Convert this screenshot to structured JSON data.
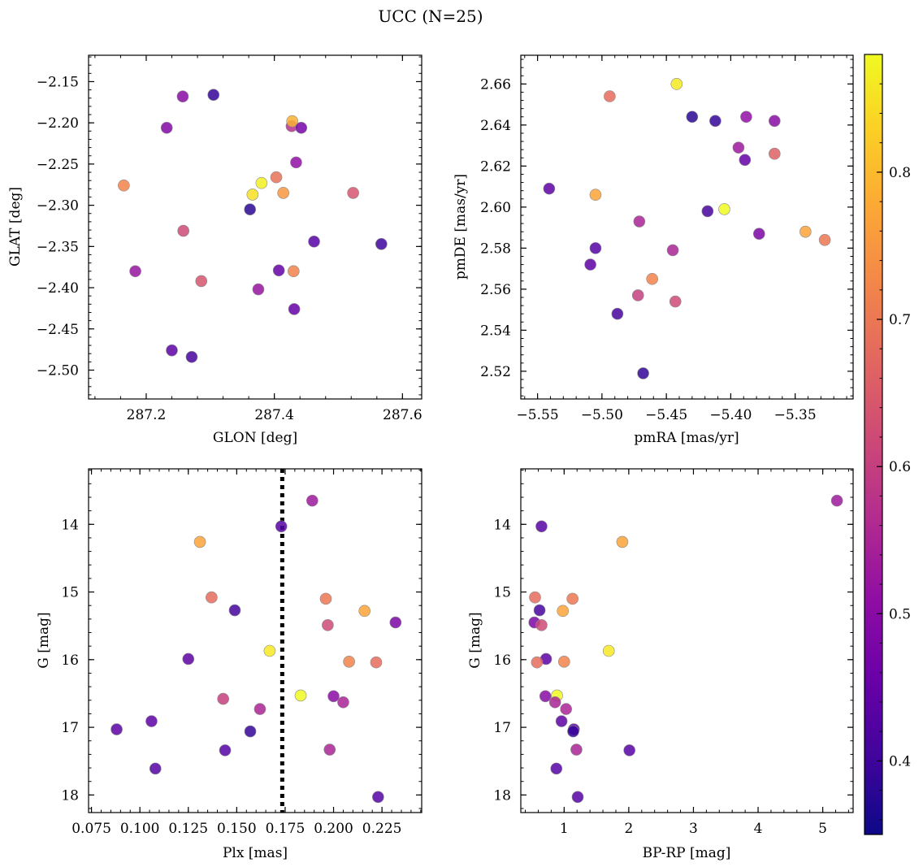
{
  "figure": {
    "title": "UCC (N=25)"
  },
  "colorbar": {
    "colormap": "plasma",
    "range": [
      0.35,
      0.88
    ],
    "ticks": [
      0.4,
      0.5,
      0.6,
      0.7,
      0.8
    ],
    "tick_labels": [
      "0.4",
      "0.5",
      "0.6",
      "0.7",
      "0.8"
    ]
  },
  "chart_data": [
    {
      "type": "scatter",
      "xlabel": "GLON [deg]",
      "ylabel": "GLAT [deg]",
      "xlim": [
        287.11,
        287.63
      ],
      "ylim": [
        -2.535,
        -2.118
      ],
      "xticks": [
        287.2,
        287.4,
        287.6
      ],
      "xtick_labels": [
        "287.2",
        "287.4",
        "287.6"
      ],
      "yticks": [
        -2.15,
        -2.2,
        -2.25,
        -2.3,
        -2.35,
        -2.4,
        -2.45,
        -2.5
      ],
      "ytick_labels": [
        "−2.15",
        "−2.20",
        "−2.25",
        "−2.30",
        "−2.35",
        "−2.40",
        "−2.45",
        "−2.50"
      ],
      "points": [
        {
          "x": 287.165,
          "y": -2.276,
          "c": 0.72
        },
        {
          "x": 287.183,
          "y": -2.38,
          "c": 0.52
        },
        {
          "x": 287.232,
          "y": -2.206,
          "c": 0.49
        },
        {
          "x": 287.24,
          "y": -2.476,
          "c": 0.44
        },
        {
          "x": 287.257,
          "y": -2.168,
          "c": 0.5
        },
        {
          "x": 287.258,
          "y": -2.331,
          "c": 0.62
        },
        {
          "x": 287.271,
          "y": -2.484,
          "c": 0.41
        },
        {
          "x": 287.286,
          "y": -2.392,
          "c": 0.64
        },
        {
          "x": 287.305,
          "y": -2.166,
          "c": 0.39
        },
        {
          "x": 287.362,
          "y": -2.305,
          "c": 0.38
        },
        {
          "x": 287.366,
          "y": -2.287,
          "c": 0.85
        },
        {
          "x": 287.375,
          "y": -2.402,
          "c": 0.52
        },
        {
          "x": 287.38,
          "y": -2.273,
          "c": 0.87
        },
        {
          "x": 287.403,
          "y": -2.266,
          "c": 0.69
        },
        {
          "x": 287.407,
          "y": -2.379,
          "c": 0.45
        },
        {
          "x": 287.414,
          "y": -2.285,
          "c": 0.75
        },
        {
          "x": 287.427,
          "y": -2.204,
          "c": 0.57
        },
        {
          "x": 287.428,
          "y": -2.198,
          "c": 0.79
        },
        {
          "x": 287.43,
          "y": -2.38,
          "c": 0.72
        },
        {
          "x": 287.431,
          "y": -2.426,
          "c": 0.45
        },
        {
          "x": 287.434,
          "y": -2.248,
          "c": 0.51
        },
        {
          "x": 287.442,
          "y": -2.206,
          "c": 0.47
        },
        {
          "x": 287.462,
          "y": -2.344,
          "c": 0.43
        },
        {
          "x": 287.523,
          "y": -2.285,
          "c": 0.64
        },
        {
          "x": 287.567,
          "y": -2.347,
          "c": 0.4
        }
      ]
    },
    {
      "type": "scatter",
      "xlabel": "pmRA [mas/yr]",
      "ylabel": "pmDE [mas/yr]",
      "xlim": [
        -5.563,
        -5.305
      ],
      "ylim": [
        2.5065,
        2.674
      ],
      "xticks": [
        -5.55,
        -5.5,
        -5.45,
        -5.4,
        -5.35
      ],
      "xtick_labels": [
        "−5.55",
        "−5.50",
        "−5.45",
        "−5.40",
        "−5.35"
      ],
      "yticks": [
        2.52,
        2.54,
        2.56,
        2.58,
        2.6,
        2.62,
        2.64,
        2.66
      ],
      "ytick_labels": [
        "2.52",
        "2.54",
        "2.56",
        "2.58",
        "2.60",
        "2.62",
        "2.64",
        "2.66"
      ],
      "points": [
        {
          "x": -5.541,
          "y": 2.609,
          "c": 0.44
        },
        {
          "x": -5.509,
          "y": 2.572,
          "c": 0.44
        },
        {
          "x": -5.505,
          "y": 2.58,
          "c": 0.43
        },
        {
          "x": -5.505,
          "y": 2.606,
          "c": 0.77
        },
        {
          "x": -5.494,
          "y": 2.654,
          "c": 0.68
        },
        {
          "x": -5.488,
          "y": 2.548,
          "c": 0.41
        },
        {
          "x": -5.472,
          "y": 2.557,
          "c": 0.6
        },
        {
          "x": -5.471,
          "y": 2.593,
          "c": 0.55
        },
        {
          "x": -5.468,
          "y": 2.519,
          "c": 0.39
        },
        {
          "x": -5.461,
          "y": 2.565,
          "c": 0.72
        },
        {
          "x": -5.445,
          "y": 2.579,
          "c": 0.55
        },
        {
          "x": -5.443,
          "y": 2.554,
          "c": 0.62
        },
        {
          "x": -5.442,
          "y": 2.66,
          "c": 0.86
        },
        {
          "x": -5.43,
          "y": 2.644,
          "c": 0.38
        },
        {
          "x": -5.418,
          "y": 2.598,
          "c": 0.41
        },
        {
          "x": -5.412,
          "y": 2.642,
          "c": 0.39
        },
        {
          "x": -5.405,
          "y": 2.599,
          "c": 0.88
        },
        {
          "x": -5.394,
          "y": 2.629,
          "c": 0.53
        },
        {
          "x": -5.389,
          "y": 2.623,
          "c": 0.45
        },
        {
          "x": -5.388,
          "y": 2.644,
          "c": 0.51
        },
        {
          "x": -5.378,
          "y": 2.587,
          "c": 0.48
        },
        {
          "x": -5.366,
          "y": 2.642,
          "c": 0.5
        },
        {
          "x": -5.366,
          "y": 2.626,
          "c": 0.66
        },
        {
          "x": -5.342,
          "y": 2.588,
          "c": 0.77
        },
        {
          "x": -5.327,
          "y": 2.584,
          "c": 0.7
        }
      ]
    },
    {
      "type": "scatter",
      "xlabel": "Plx [mas]",
      "ylabel": "G [mag]",
      "xlim": [
        0.0735,
        0.2455
      ],
      "ylim": [
        18.26,
        13.18
      ],
      "vline": 0.1735,
      "xticks": [
        0.075,
        0.1,
        0.125,
        0.15,
        0.175,
        0.2,
        0.225
      ],
      "xtick_labels": [
        "0.075",
        "0.100",
        "0.125",
        "0.150",
        "0.175",
        "0.200",
        "0.225"
      ],
      "yticks": [
        14,
        15,
        16,
        17,
        18
      ],
      "ytick_labels": [
        "14",
        "15",
        "16",
        "17",
        "18"
      ],
      "points": [
        {
          "x": 0.088,
          "y": 17.03,
          "c": 0.44
        },
        {
          "x": 0.106,
          "y": 16.91,
          "c": 0.44
        },
        {
          "x": 0.108,
          "y": 17.61,
          "c": 0.43
        },
        {
          "x": 0.125,
          "y": 15.99,
          "c": 0.44
        },
        {
          "x": 0.131,
          "y": 14.26,
          "c": 0.77
        },
        {
          "x": 0.137,
          "y": 15.08,
          "c": 0.68
        },
        {
          "x": 0.143,
          "y": 16.58,
          "c": 0.6
        },
        {
          "x": 0.144,
          "y": 17.34,
          "c": 0.43
        },
        {
          "x": 0.149,
          "y": 15.27,
          "c": 0.41
        },
        {
          "x": 0.157,
          "y": 17.06,
          "c": 0.39
        },
        {
          "x": 0.162,
          "y": 16.73,
          "c": 0.55
        },
        {
          "x": 0.167,
          "y": 15.87,
          "c": 0.86
        },
        {
          "x": 0.173,
          "y": 14.03,
          "c": 0.43
        },
        {
          "x": 0.183,
          "y": 16.53,
          "c": 0.88
        },
        {
          "x": 0.189,
          "y": 13.65,
          "c": 0.53
        },
        {
          "x": 0.196,
          "y": 15.1,
          "c": 0.7
        },
        {
          "x": 0.197,
          "y": 15.49,
          "c": 0.62
        },
        {
          "x": 0.198,
          "y": 17.33,
          "c": 0.55
        },
        {
          "x": 0.2,
          "y": 16.54,
          "c": 0.5
        },
        {
          "x": 0.205,
          "y": 16.63,
          "c": 0.55
        },
        {
          "x": 0.208,
          "y": 16.03,
          "c": 0.72
        },
        {
          "x": 0.216,
          "y": 15.28,
          "c": 0.77
        },
        {
          "x": 0.222,
          "y": 16.04,
          "c": 0.68
        },
        {
          "x": 0.223,
          "y": 18.03,
          "c": 0.43
        },
        {
          "x": 0.232,
          "y": 15.45,
          "c": 0.48
        }
      ]
    },
    {
      "type": "scatter",
      "xlabel": "BP-RP [mag]",
      "ylabel": "G [mag]",
      "xlim": [
        0.33,
        5.47
      ],
      "ylim": [
        18.26,
        13.18
      ],
      "xticks": [
        1,
        2,
        3,
        4,
        5
      ],
      "xtick_labels": [
        "1",
        "2",
        "3",
        "4",
        "5"
      ],
      "yticks": [
        14,
        15,
        16,
        17,
        18
      ],
      "ytick_labels": [
        "14",
        "15",
        "16",
        "17",
        "18"
      ],
      "points": [
        {
          "x": 5.22,
          "y": 13.65,
          "c": 0.53
        },
        {
          "x": 0.65,
          "y": 14.03,
          "c": 0.43
        },
        {
          "x": 1.9,
          "y": 14.26,
          "c": 0.77
        },
        {
          "x": 0.55,
          "y": 15.08,
          "c": 0.68
        },
        {
          "x": 1.13,
          "y": 15.1,
          "c": 0.7
        },
        {
          "x": 0.62,
          "y": 15.27,
          "c": 0.41
        },
        {
          "x": 0.98,
          "y": 15.28,
          "c": 0.77
        },
        {
          "x": 0.54,
          "y": 15.45,
          "c": 0.48
        },
        {
          "x": 0.65,
          "y": 15.49,
          "c": 0.62
        },
        {
          "x": 1.69,
          "y": 15.87,
          "c": 0.86
        },
        {
          "x": 0.72,
          "y": 15.99,
          "c": 0.44
        },
        {
          "x": 0.58,
          "y": 16.04,
          "c": 0.68
        },
        {
          "x": 1.0,
          "y": 16.03,
          "c": 0.72
        },
        {
          "x": 0.71,
          "y": 16.54,
          "c": 0.5
        },
        {
          "x": 0.89,
          "y": 16.53,
          "c": 0.88
        },
        {
          "x": 0.86,
          "y": 16.63,
          "c": 0.55
        },
        {
          "x": 1.03,
          "y": 16.73,
          "c": 0.55
        },
        {
          "x": 0.96,
          "y": 16.91,
          "c": 0.44
        },
        {
          "x": 1.15,
          "y": 17.03,
          "c": 0.44
        },
        {
          "x": 1.14,
          "y": 17.06,
          "c": 0.39
        },
        {
          "x": 1.19,
          "y": 17.33,
          "c": 0.55
        },
        {
          "x": 2.01,
          "y": 17.34,
          "c": 0.43
        },
        {
          "x": 0.88,
          "y": 17.61,
          "c": 0.43
        },
        {
          "x": 1.21,
          "y": 18.03,
          "c": 0.43
        }
      ]
    }
  ]
}
